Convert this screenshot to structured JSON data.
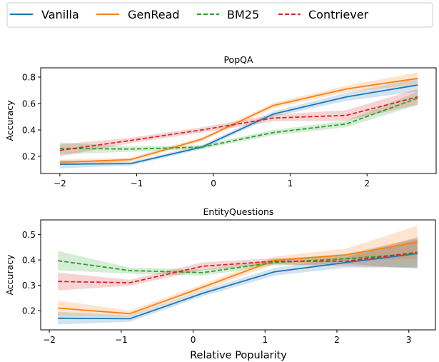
{
  "legend": {
    "entries": [
      {
        "name": "Vanilla",
        "color": "#1f77b4",
        "style": "solid"
      },
      {
        "name": "GenRead",
        "color": "#ff7f0e",
        "style": "solid"
      },
      {
        "name": "BM25",
        "color": "#2ca02c",
        "style": "dashed"
      },
      {
        "name": "Contriever",
        "color": "#d62728",
        "style": "dashed"
      }
    ],
    "placement": "top"
  },
  "chart_data": [
    {
      "type": "line",
      "title": "PopQA",
      "xlabel": "",
      "ylabel": "Accuracy",
      "xlim": [
        -2.25,
        2.9
      ],
      "ylim": [
        0.07,
        0.87
      ],
      "xticks": [
        -2,
        -1,
        0,
        1,
        2
      ],
      "xtick_labels": [
        "−2",
        "−1",
        "0",
        "1",
        "2"
      ],
      "yticks": [
        0.2,
        0.4,
        0.6,
        0.8
      ],
      "ytick_labels": [
        "0.2",
        "0.4",
        "0.6",
        "0.8"
      ],
      "grid": false,
      "x": [
        -2.0,
        -1.08,
        -0.15,
        0.78,
        1.73,
        2.66
      ],
      "series": [
        {
          "name": "Vanilla",
          "values": [
            0.14,
            0.145,
            0.27,
            0.52,
            0.65,
            0.74
          ],
          "band": [
            0.03,
            0.015,
            0.015,
            0.02,
            0.03,
            0.05
          ]
        },
        {
          "name": "GenRead",
          "values": [
            0.155,
            0.175,
            0.33,
            0.585,
            0.71,
            0.79
          ],
          "band": [
            0.02,
            0.015,
            0.015,
            0.02,
            0.025,
            0.045
          ]
        },
        {
          "name": "BM25",
          "values": [
            0.26,
            0.255,
            0.27,
            0.38,
            0.445,
            0.64
          ],
          "band": [
            0.045,
            0.02,
            0.015,
            0.02,
            0.025,
            0.05
          ]
        },
        {
          "name": "Contriever",
          "values": [
            0.245,
            0.32,
            0.4,
            0.49,
            0.51,
            0.65
          ],
          "band": [
            0.045,
            0.02,
            0.02,
            0.025,
            0.04,
            0.06
          ]
        }
      ]
    },
    {
      "type": "line",
      "title": "EntityQuestions",
      "xlabel": "Relative Popularity",
      "ylabel": "Accuracy",
      "xlim": [
        -2.12,
        3.37
      ],
      "ylim": [
        0.124,
        0.558
      ],
      "xticks": [
        -2,
        -1,
        0,
        1,
        2,
        3
      ],
      "xtick_labels": [
        "−2",
        "−1",
        "0",
        "1",
        "2",
        "3"
      ],
      "yticks": [
        0.2,
        0.3,
        0.4,
        0.5
      ],
      "ytick_labels": [
        "0.2",
        "0.3",
        "0.4",
        "0.5"
      ],
      "grid": false,
      "x": [
        -1.88,
        -0.88,
        0.13,
        1.13,
        2.13,
        3.12
      ],
      "series": [
        {
          "name": "Vanilla",
          "values": [
            0.17,
            0.168,
            0.268,
            0.353,
            0.39,
            0.425
          ],
          "band": [
            0.025,
            0.012,
            0.012,
            0.015,
            0.02,
            0.055
          ]
        },
        {
          "name": "GenRead",
          "values": [
            0.21,
            0.188,
            0.292,
            0.398,
            0.42,
            0.47
          ],
          "band": [
            0.03,
            0.012,
            0.012,
            0.015,
            0.025,
            0.065
          ]
        },
        {
          "name": "BM25",
          "values": [
            0.397,
            0.358,
            0.35,
            0.39,
            0.405,
            0.425
          ],
          "band": [
            0.038,
            0.012,
            0.012,
            0.012,
            0.02,
            0.06
          ]
        },
        {
          "name": "Contriever",
          "values": [
            0.315,
            0.31,
            0.375,
            0.395,
            0.395,
            0.43
          ],
          "band": [
            0.035,
            0.012,
            0.015,
            0.012,
            0.02,
            0.06
          ]
        }
      ]
    }
  ]
}
